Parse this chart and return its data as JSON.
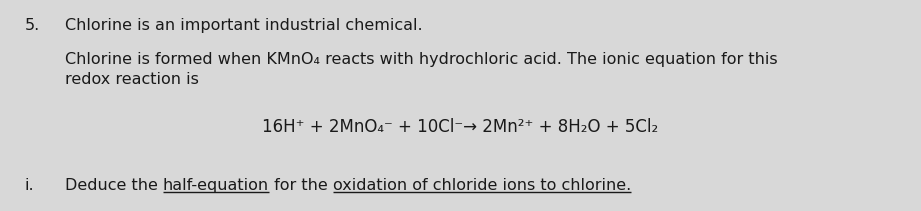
{
  "bg_color": "#d8d8d8",
  "text_color": "#1a1a1a",
  "line1_number": "5.",
  "line1_text": "Chlorine is an important industrial chemical.",
  "line2_text": "Chlorine is formed when KMnO₄ reacts with hydrochloric acid. The ionic equation for this",
  "line3_text": "redox reaction is",
  "equation": "16H⁺ + 2MnO₄⁻ + 10Cl⁻→ 2Mn²⁺ + 8H₂O + 5Cl₂",
  "line_i_label": "i.",
  "seg1": "Deduce the ",
  "seg2": "half-equation",
  "seg3": " for the ",
  "seg4": "oxidation of chloride ions to chlorine.",
  "font_size_main": 11.5,
  "font_size_eq": 12.0,
  "underline_color": "#1a1a1a",
  "fig_width": 9.21,
  "fig_height": 2.11,
  "dpi": 100
}
